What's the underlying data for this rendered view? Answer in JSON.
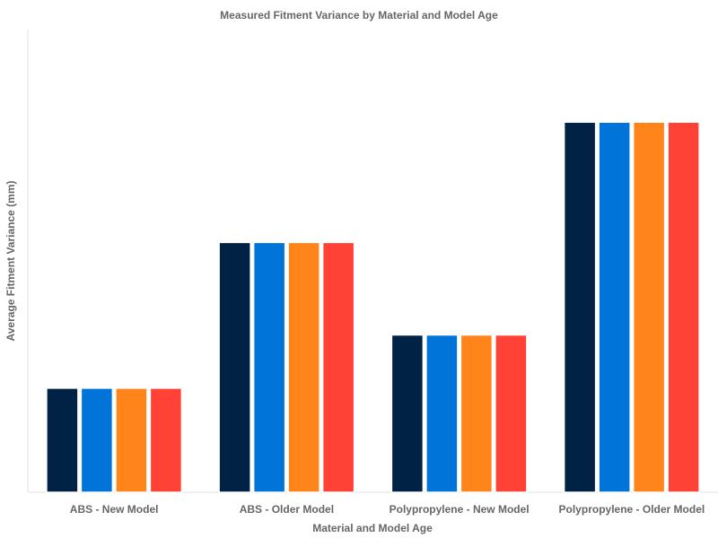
{
  "chart_data": {
    "type": "bar",
    "title": "Measured Fitment Variance by Material and Model Age",
    "xlabel": "Material and Model Age",
    "ylabel": "Average Fitment Variance (mm)",
    "categories": [
      "ABS - New Model",
      "ABS - Older Model",
      "Polypropylene - New Model",
      "Polypropylene - Older Model"
    ],
    "series": [
      {
        "values": [
          0.45,
          1.08,
          0.68,
          1.6
        ],
        "color": "#002244"
      },
      {
        "values": [
          0.45,
          1.08,
          0.68,
          1.6
        ],
        "color": "#0074d9"
      },
      {
        "values": [
          0.45,
          1.08,
          0.68,
          1.6
        ],
        "color": "#ff851b"
      },
      {
        "values": [
          0.45,
          1.08,
          0.68,
          1.6
        ],
        "color": "#ff4136"
      }
    ],
    "ylim": [
      0,
      2.0
    ],
    "grid": false,
    "legend": "none",
    "y_ticks_shown": false
  }
}
